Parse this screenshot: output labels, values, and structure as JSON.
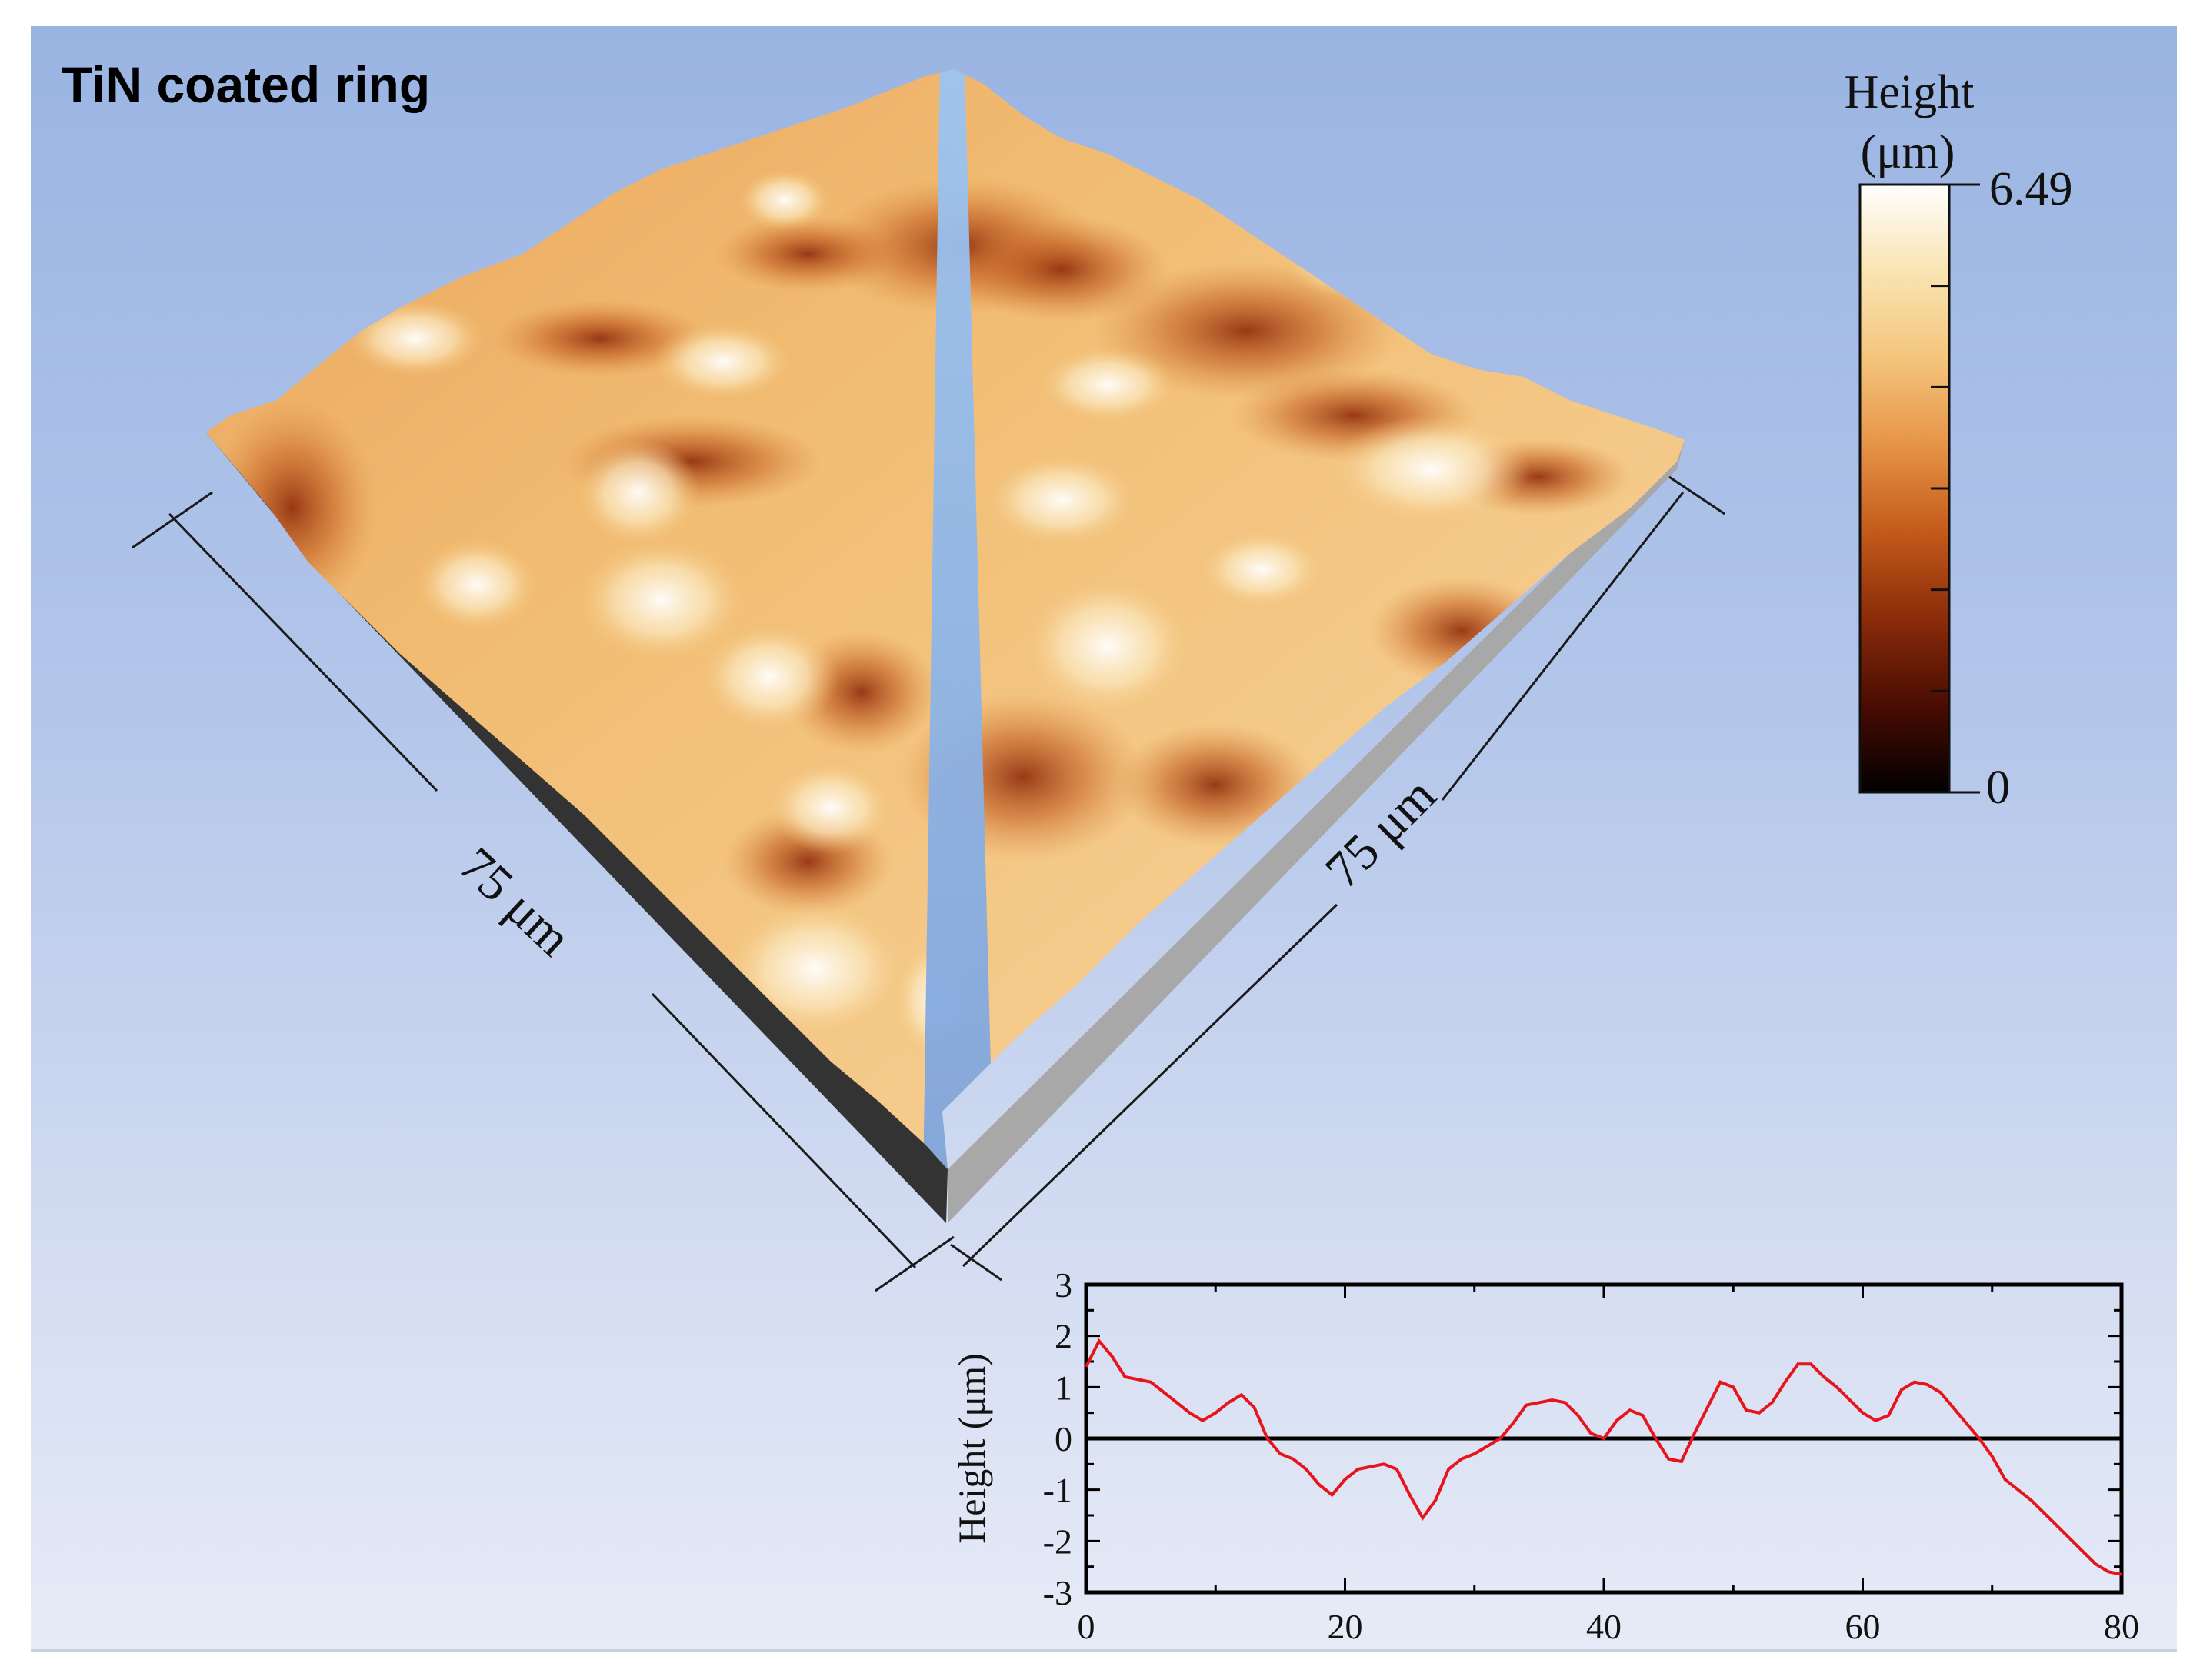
{
  "title": "TiN coated ring",
  "surface": {
    "left_dimension_label": "75 μm",
    "right_dimension_label": "75 μm"
  },
  "colorbar": {
    "title_line1": "Height",
    "title_line2": "(μm)",
    "max_label": "6.49",
    "min_label": "0",
    "range": [
      0,
      6.49
    ],
    "colors": [
      "#000000",
      "#4a0c02",
      "#8a2c0a",
      "#c45a1a",
      "#e69447",
      "#f4c57c",
      "#f9e4b2",
      "#ffffff"
    ]
  },
  "chart_data": {
    "type": "line",
    "title": "",
    "xlabel": "",
    "ylabel": "Height (μm)",
    "xlim": [
      0,
      80
    ],
    "ylim": [
      -3,
      3
    ],
    "x_ticks": [
      "0",
      "20",
      "40",
      "60",
      "80"
    ],
    "y_ticks": [
      "3",
      "2",
      "1",
      "0",
      "-1",
      "-2",
      "-3"
    ],
    "reference_line_y": 0,
    "series": [
      {
        "color": "#e8141b",
        "x": [
          0,
          1,
          2,
          3,
          4,
          5,
          6,
          7,
          8,
          9,
          10,
          11,
          12,
          13,
          14,
          15,
          16,
          17,
          18,
          19,
          20,
          21,
          22,
          23,
          24,
          25,
          26,
          27,
          28,
          29,
          30,
          31,
          32,
          33,
          34,
          35,
          36,
          37,
          38,
          39,
          40,
          41,
          42,
          43,
          44,
          45,
          46,
          47,
          48,
          49,
          50,
          51,
          52,
          53,
          54,
          55,
          56,
          57,
          58,
          59,
          60,
          61,
          62,
          63,
          64,
          65,
          66,
          67,
          68,
          69,
          70,
          71,
          72,
          73,
          74,
          75,
          76,
          77,
          78,
          79,
          80
        ],
        "y": [
          1.4,
          1.9,
          1.6,
          1.2,
          1.15,
          1.1,
          0.9,
          0.7,
          0.5,
          0.35,
          0.5,
          0.7,
          0.85,
          0.6,
          0.0,
          -0.3,
          -0.4,
          -0.6,
          -0.9,
          -1.1,
          -0.8,
          -0.6,
          -0.55,
          -0.5,
          -0.6,
          -1.1,
          -1.55,
          -1.2,
          -0.6,
          -0.4,
          -0.3,
          -0.15,
          0.0,
          0.3,
          0.65,
          0.7,
          0.75,
          0.7,
          0.45,
          0.1,
          0.0,
          0.35,
          0.55,
          0.45,
          0.0,
          -0.4,
          -0.45,
          0.1,
          0.6,
          1.1,
          1.0,
          0.55,
          0.5,
          0.7,
          1.1,
          1.45,
          1.45,
          1.2,
          1.0,
          0.75,
          0.5,
          0.35,
          0.45,
          0.95,
          1.1,
          1.05,
          0.9,
          0.6,
          0.3,
          0.0,
          -0.35,
          -0.8,
          -1.0,
          -1.2,
          -1.45,
          -1.7,
          -1.95,
          -2.2,
          -2.45,
          -2.6,
          -2.65
        ]
      }
    ]
  }
}
